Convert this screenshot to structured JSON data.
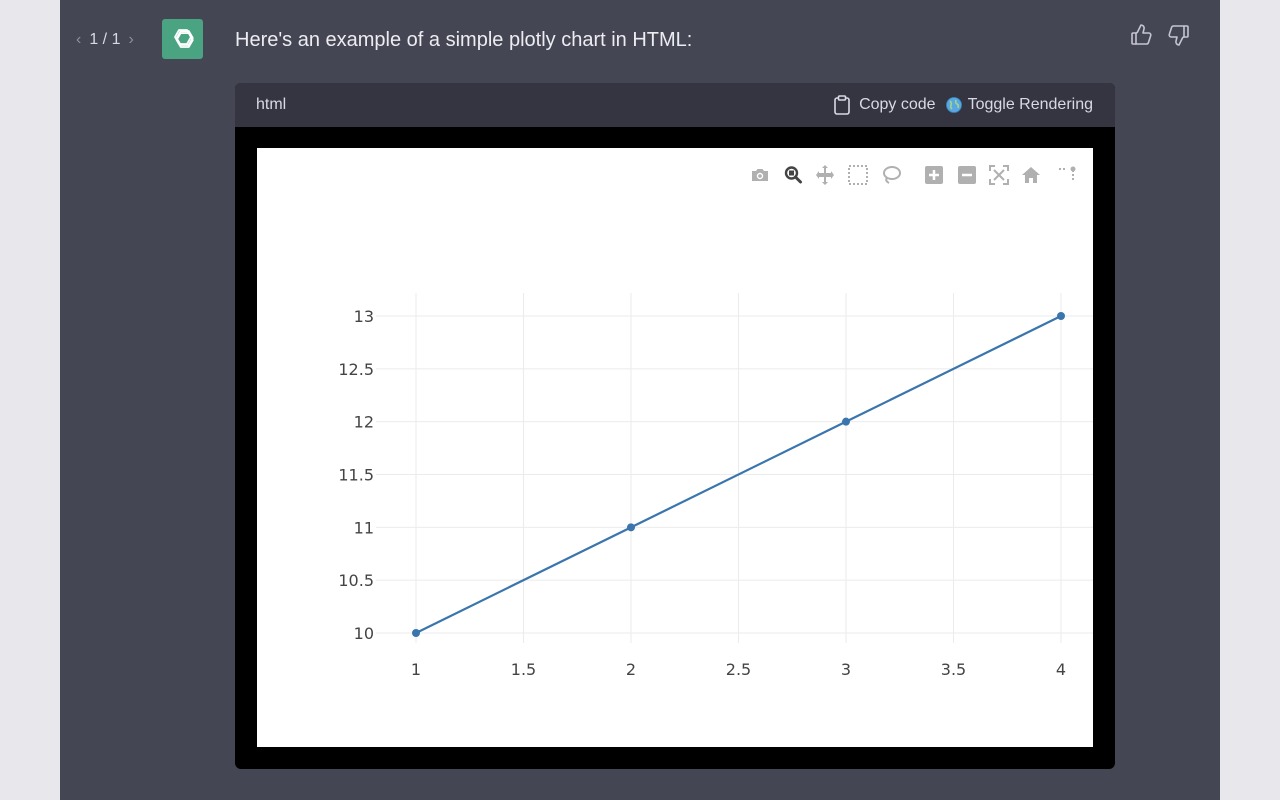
{
  "pager": {
    "text": "1 / 1"
  },
  "message": {
    "text": "Here's an example of a simple plotly chart in HTML:"
  },
  "code_block": {
    "language": "html",
    "copy_label": "Copy code",
    "toggle_label": "Toggle Rendering"
  },
  "icons": {
    "prev": "chevron-left-icon",
    "next": "chevron-right-icon",
    "avatar": "openai-logo-icon",
    "like": "thumbs-up-icon",
    "dislike": "thumbs-down-icon",
    "copy": "clipboard-icon",
    "toggle": "globe-icon",
    "modebar": [
      "camera-icon",
      "zoom-icon",
      "pan-icon",
      "box-select-icon",
      "lasso-icon",
      "zoom-in-icon",
      "zoom-out-icon",
      "autoscale-icon",
      "reset-axes-icon",
      "spikelines-icon"
    ]
  },
  "colors": {
    "panel": "#444654",
    "avatar": "#4aa381",
    "line": "#3a75ad",
    "grid": "#ebebeb"
  },
  "chart_data": {
    "type": "line",
    "x": [
      1,
      2,
      3,
      4
    ],
    "y": [
      10,
      11,
      12,
      13
    ],
    "xlim": [
      1,
      4
    ],
    "ylim": [
      10,
      13
    ],
    "xticks": [
      "1",
      "1.5",
      "2",
      "2.5",
      "3",
      "3.5",
      "4"
    ],
    "yticks": [
      "10",
      "10.5",
      "11",
      "11.5",
      "12",
      "12.5",
      "13"
    ],
    "grid": true,
    "markers": true,
    "line_color": "#3a75ad"
  }
}
